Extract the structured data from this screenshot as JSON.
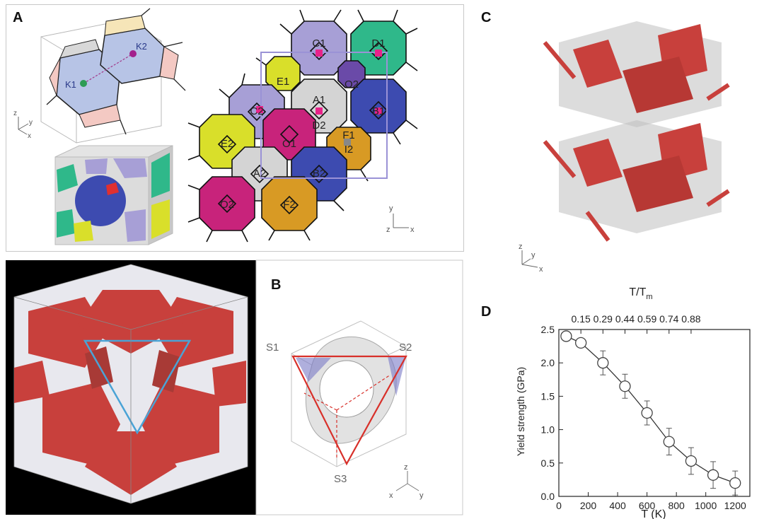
{
  "panels": {
    "a": {
      "letter": "A",
      "labels_left": [
        "K1",
        "K2"
      ],
      "axes_small": [
        "z",
        "y",
        "x"
      ],
      "grain_labels": [
        "C1",
        "D1",
        "E1",
        "O2",
        "A1",
        "B1",
        "C2",
        "D2",
        "F1",
        "I2",
        "E2",
        "O1",
        "A2",
        "B2",
        "O2",
        "F2"
      ],
      "axes_right": [
        "y",
        "z",
        "x"
      ]
    },
    "b": {
      "letter": "B",
      "labels": [
        "S1",
        "S2",
        "S3"
      ],
      "axes": [
        "z",
        "x",
        "y"
      ]
    },
    "c": {
      "letter": "C",
      "axes": [
        "z",
        "y",
        "x"
      ]
    },
    "d": {
      "letter": "D"
    }
  },
  "colors": {
    "lavender": "#a79fd6",
    "green": "#2fb88a",
    "yellow": "#d9df2a",
    "purple": "#6a4aa8",
    "gray": "#d4d4d4",
    "blue": "#3d4bb0",
    "magenta": "#c8237b",
    "orange": "#d89a24",
    "atom_red": "#c8403c",
    "marker": "#e8238a"
  },
  "chart_data": {
    "type": "line",
    "title": "",
    "xlabel": "T (K)",
    "ylabel": "Yield strength (GPa)",
    "top_axis_label": "T/T",
    "top_axis_label_sub": "m",
    "top_ticks": [
      "0.15",
      "0.29",
      "0.44",
      "0.59",
      "0.74",
      "0.88"
    ],
    "top_tick_positions_x": [
      150,
      300,
      450,
      600,
      750,
      900
    ],
    "xlim": [
      0,
      1300
    ],
    "ylim": [
      0.0,
      2.5
    ],
    "xticks": [
      "0",
      "200",
      "400",
      "600",
      "800",
      "1000",
      "1200"
    ],
    "yticks": [
      "0.0",
      "0.5",
      "1.0",
      "1.5",
      "2.0",
      "2.5"
    ],
    "x": [
      50,
      150,
      300,
      450,
      600,
      750,
      900,
      1050,
      1200
    ],
    "y": [
      2.4,
      2.3,
      2.0,
      1.65,
      1.25,
      0.82,
      0.53,
      0.32,
      0.2
    ],
    "err": [
      0.03,
      0.03,
      0.18,
      0.18,
      0.18,
      0.2,
      0.2,
      0.2,
      0.18
    ],
    "grid": false
  }
}
